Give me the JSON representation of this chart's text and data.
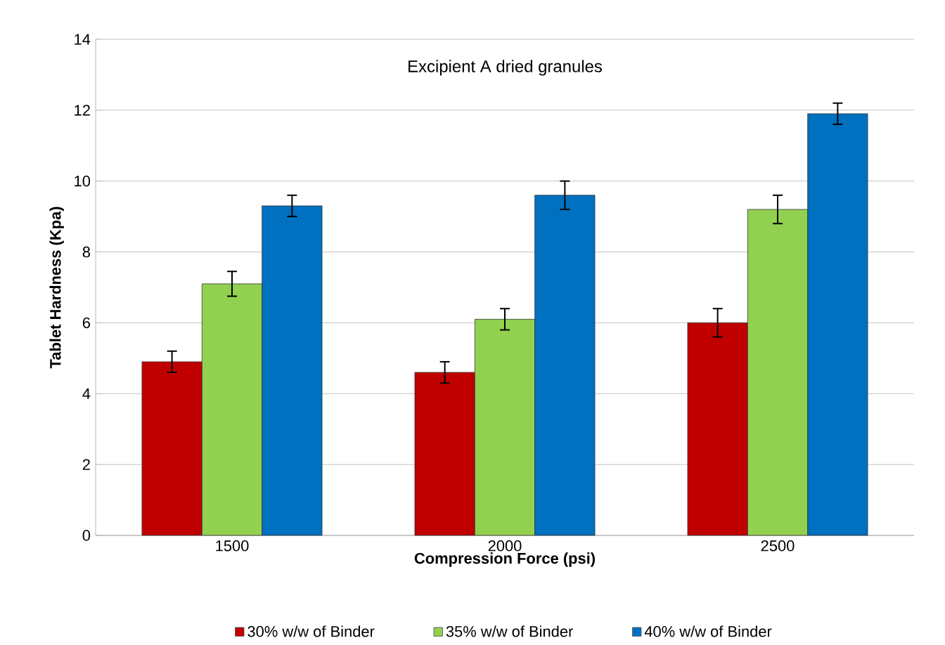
{
  "chart_data": {
    "type": "bar",
    "title": "Excipient A dried granules",
    "xlabel": "Compression Force (psi)",
    "ylabel": "Tablet Hardness (Kpa)",
    "categories": [
      "1500",
      "2000",
      "2500"
    ],
    "series": [
      {
        "name": "30% w/w of Binder",
        "color": "#c00000",
        "values": [
          4.9,
          4.6,
          6.0
        ],
        "errors": [
          0.3,
          0.3,
          0.4
        ]
      },
      {
        "name": "35% w/w of Binder",
        "color": "#92d050",
        "values": [
          7.1,
          6.1,
          9.2
        ],
        "errors": [
          0.35,
          0.3,
          0.4
        ]
      },
      {
        "name": "40% w/w of Binder",
        "color": "#0070c0",
        "values": [
          9.3,
          9.6,
          11.9
        ],
        "errors": [
          0.3,
          0.4,
          0.3
        ]
      }
    ],
    "ylim": [
      0,
      14
    ],
    "yticks": [
      0,
      2,
      4,
      6,
      8,
      10,
      12,
      14
    ],
    "grid": "y",
    "legend": "bottom"
  }
}
